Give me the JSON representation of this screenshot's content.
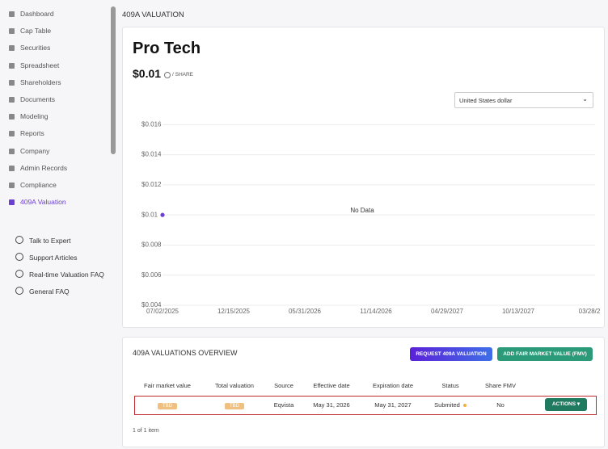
{
  "sidebar": {
    "nav": [
      "Dashboard",
      "Cap Table",
      "Securities",
      "Spreadsheet",
      "Shareholders",
      "Documents",
      "Modeling",
      "Reports",
      "Company",
      "Admin Records",
      "Compliance",
      "409A Valuation"
    ],
    "help": [
      "Talk to Expert",
      "Support Articles",
      "Real-time Valuation FAQ",
      "General FAQ"
    ]
  },
  "page_title": "409A VALUATION",
  "valuation_card": {
    "company": "Pro Tech",
    "price": "$0.01",
    "price_unit": "/ SHARE",
    "currency": "United States dollar",
    "chart_data": {
      "type": "scatter",
      "categories": [
        "07/02/2025",
        "12/15/2025",
        "05/31/2026",
        "11/14/2026",
        "04/29/2027",
        "10/13/2027",
        "03/28/2"
      ],
      "values": [
        0.01,
        null,
        null,
        null,
        null,
        null,
        null
      ],
      "color": "#6b3fd1",
      "annotation": "No Data",
      "ylim": [
        0.004,
        0.0165
      ],
      "yticks": [
        {
          "value": 0.016,
          "label": "$0.016"
        },
        {
          "value": 0.014,
          "label": "$0.014"
        },
        {
          "value": 0.012,
          "label": "$0.012"
        },
        {
          "value": 0.01,
          "label": "$0.01"
        },
        {
          "value": 0.008,
          "label": "$0.008"
        },
        {
          "value": 0.006,
          "label": "$0.006"
        },
        {
          "value": 0.004,
          "label": "$0.004"
        }
      ],
      "grid": true
    }
  },
  "overview": {
    "title": "409A VALUATIONS OVERVIEW",
    "buttons": [
      "REQUEST 409A VALUATION",
      "ADD FAIR MARKET VALUE (FMV)"
    ],
    "table": {
      "headers": [
        "Fair market value",
        "Total valuation",
        "Source",
        "Effective date",
        "Expiration date",
        "Status",
        "Share FMV"
      ],
      "rows": [
        [
          "TBD",
          "TBD",
          "Eqvista",
          "May 31, 2026",
          "May 31, 2027",
          "Submited",
          "No"
        ]
      ],
      "action": "ACTIONS"
    },
    "pagination": "1 of 1 item"
  }
}
